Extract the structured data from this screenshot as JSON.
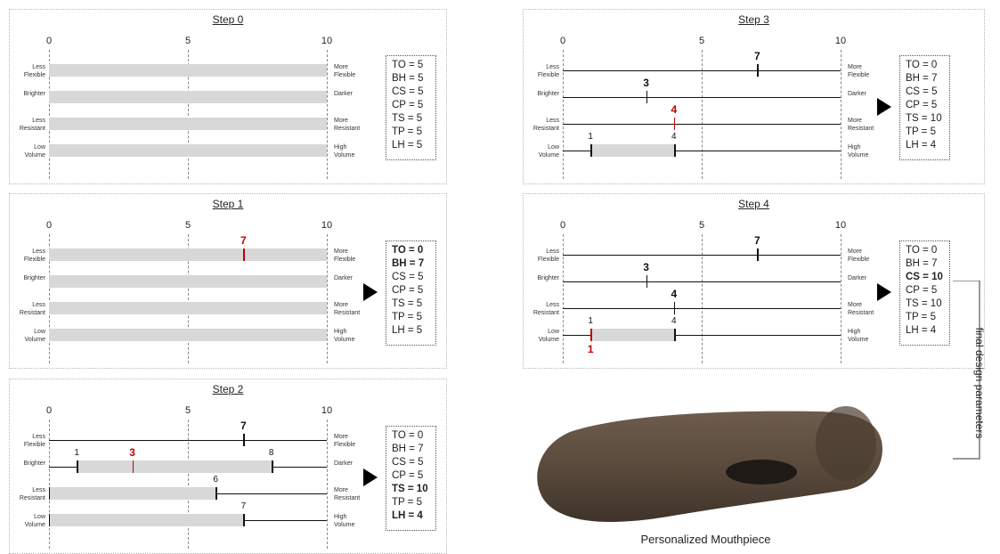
{
  "scale_ticks": [
    "0",
    "5",
    "10"
  ],
  "attributes": [
    {
      "left": "Less\nFlexible",
      "right": "More\nFlexible"
    },
    {
      "left": "Brighter",
      "right": "Darker"
    },
    {
      "left": "Less\nResistant",
      "right": "More\nResistant"
    },
    {
      "left": "Low\nVolume",
      "right": "High\nVolume"
    }
  ],
  "steps": [
    {
      "title": "Step 0",
      "rows": [
        {
          "range": [
            0,
            10
          ]
        },
        {
          "range": [
            0,
            10
          ]
        },
        {
          "range": [
            0,
            10
          ]
        },
        {
          "range": [
            0,
            10
          ]
        }
      ],
      "params": [
        {
          "text": "TO = 5",
          "bold": false
        },
        {
          "text": "BH = 5",
          "bold": false
        },
        {
          "text": "CS = 5",
          "bold": false
        },
        {
          "text": "CP = 5",
          "bold": false
        },
        {
          "text": "TS = 5",
          "bold": false
        },
        {
          "text": "TP = 5",
          "bold": false
        },
        {
          "text": "LH = 5",
          "bold": false
        }
      ],
      "arrow": false
    },
    {
      "title": "Step 1",
      "rows": [
        {
          "range": [
            0,
            10
          ],
          "marks": [
            {
              "v": 7,
              "label": "7",
              "red": true
            }
          ]
        },
        {
          "range": [
            0,
            10
          ]
        },
        {
          "range": [
            0,
            10
          ]
        },
        {
          "range": [
            0,
            10
          ]
        }
      ],
      "params": [
        {
          "text": "TO = 0",
          "bold": true
        },
        {
          "text": "BH = 7",
          "bold": true
        },
        {
          "text": "CS = 5",
          "bold": false
        },
        {
          "text": "CP = 5",
          "bold": false
        },
        {
          "text": "TS = 5",
          "bold": false
        },
        {
          "text": "TP = 5",
          "bold": false
        },
        {
          "text": "LH = 5",
          "bold": false
        }
      ],
      "arrow": true
    },
    {
      "title": "Step 2",
      "rows": [
        {
          "marks": [
            {
              "v": 7,
              "label": "7"
            }
          ]
        },
        {
          "range": [
            1,
            8
          ],
          "marks": [
            {
              "v": 3,
              "label": "3",
              "red": true
            }
          ],
          "ends": [
            {
              "v": 1,
              "label": "1"
            },
            {
              "v": 8,
              "label": "8"
            }
          ]
        },
        {
          "range": [
            0,
            6
          ],
          "ends": [
            {
              "v": 6,
              "label": "6"
            }
          ]
        },
        {
          "range": [
            0,
            7
          ],
          "ends": [
            {
              "v": 7,
              "label": "7"
            }
          ]
        }
      ],
      "params": [
        {
          "text": "TO = 0",
          "bold": false
        },
        {
          "text": "BH = 7",
          "bold": false
        },
        {
          "text": "CS = 5",
          "bold": false
        },
        {
          "text": "CP = 5",
          "bold": false
        },
        {
          "text": "TS = 10",
          "bold": true
        },
        {
          "text": "TP = 5",
          "bold": false
        },
        {
          "text": "LH = 4",
          "bold": true
        }
      ],
      "arrow": true
    },
    {
      "title": "Step 3",
      "rows": [
        {
          "marks": [
            {
              "v": 7,
              "label": "7"
            }
          ]
        },
        {
          "marks": [
            {
              "v": 3,
              "label": "3"
            }
          ]
        },
        {
          "marks": [
            {
              "v": 4,
              "label": "4",
              "red": true
            }
          ]
        },
        {
          "range": [
            1,
            4
          ],
          "ends": [
            {
              "v": 1,
              "label": "1"
            },
            {
              "v": 4,
              "label": "4"
            }
          ]
        }
      ],
      "params": [
        {
          "text": "TO = 0",
          "bold": false
        },
        {
          "text": "BH = 7",
          "bold": false
        },
        {
          "text": "CS = 5",
          "bold": false
        },
        {
          "text": "CP = 5",
          "bold": false
        },
        {
          "text": "TS = 10",
          "bold": false
        },
        {
          "text": "TP = 5",
          "bold": false
        },
        {
          "text": "LH = 4",
          "bold": false
        }
      ],
      "arrow": true
    },
    {
      "title": "Step 4",
      "rows": [
        {
          "marks": [
            {
              "v": 7,
              "label": "7"
            }
          ]
        },
        {
          "marks": [
            {
              "v": 3,
              "label": "3"
            }
          ]
        },
        {
          "marks": [
            {
              "v": 4,
              "label": "4"
            }
          ]
        },
        {
          "range": [
            1,
            4
          ],
          "ends": [
            {
              "v": 1,
              "label": "1"
            },
            {
              "v": 4,
              "label": "4"
            }
          ],
          "marks": [
            {
              "v": 1,
              "label": "1",
              "red": true,
              "below": true
            }
          ]
        }
      ],
      "params": [
        {
          "text": "TO = 0",
          "bold": false
        },
        {
          "text": "BH = 7",
          "bold": false
        },
        {
          "text": "CS = 10",
          "bold": true
        },
        {
          "text": "CP = 5",
          "bold": false
        },
        {
          "text": "TS = 10",
          "bold": false
        },
        {
          "text": "TP = 5",
          "bold": false
        },
        {
          "text": "LH = 4",
          "bold": false
        }
      ],
      "arrow": true
    }
  ],
  "side_label": "final design parameters",
  "caption": "Personalized Mouthpiece",
  "colors": {
    "highlight": "#c00000",
    "range_fill": "#d8d8d8",
    "mouthpiece": "#5a4a3c"
  }
}
